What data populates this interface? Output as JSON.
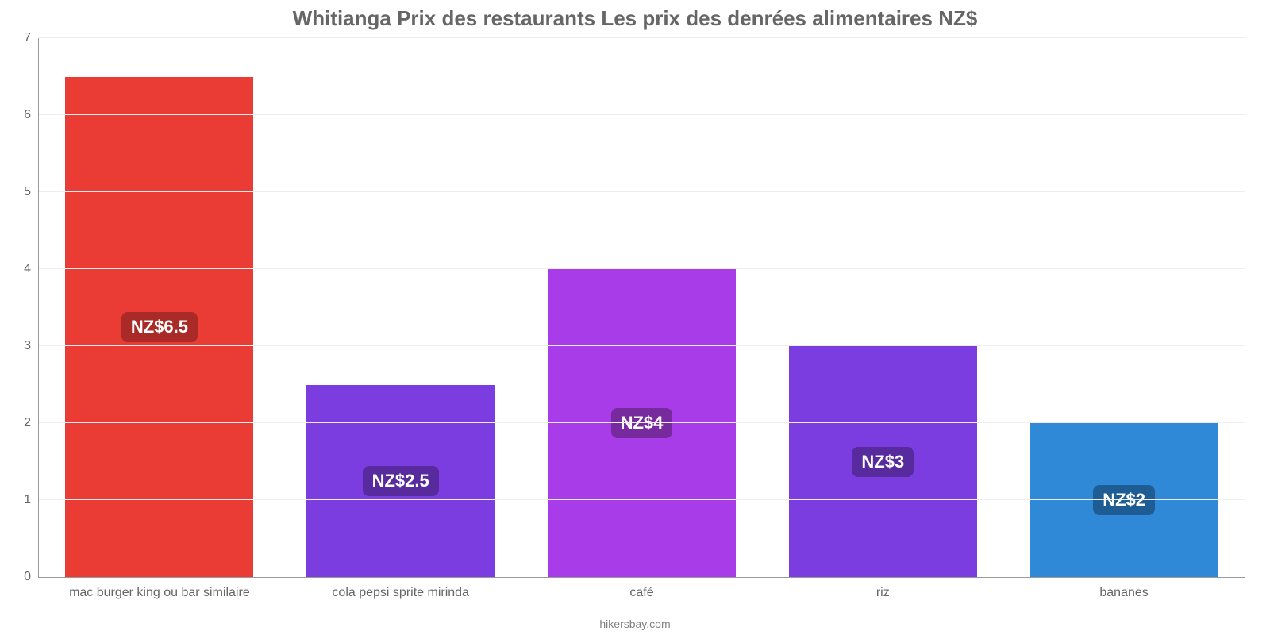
{
  "chart": {
    "type": "bar",
    "title": "Whitianga Prix des restaurants Les prix des denrées alimentaires NZ$",
    "title_fontsize": 26,
    "title_color": "#666666",
    "background_color": "#ffffff",
    "grid_color": "#eeeeee",
    "axis_color": "#999999",
    "tick_color": "#666666",
    "tick_fontsize": 16,
    "source": "hikersbay.com",
    "source_color": "#808080",
    "ylim": [
      0,
      7
    ],
    "ytick_step": 1,
    "bar_width": 0.78,
    "categories": [
      "mac burger king ou bar similaire",
      "cola pepsi sprite mirinda",
      "café",
      "riz",
      "bananes"
    ],
    "values": [
      6.5,
      2.5,
      4,
      3,
      2
    ],
    "value_labels": [
      "NZ$6.5",
      "NZ$2.5",
      "NZ$4",
      "NZ$3",
      "NZ$2"
    ],
    "bar_colors": [
      "#eb3b35",
      "#7b3ce0",
      "#a83ce9",
      "#7b3ce0",
      "#2f89d6"
    ],
    "label_bg_colors": [
      "#a92a26",
      "#572a9e",
      "#77299e",
      "#572a9e",
      "#1e5d94"
    ],
    "label_text_color": "#ffffff",
    "label_fontsize": 22
  }
}
